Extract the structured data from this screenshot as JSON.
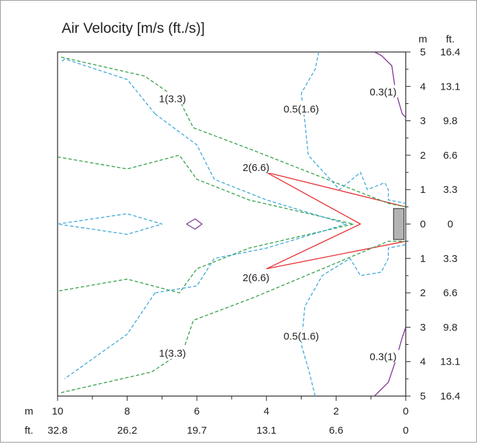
{
  "chart_data": {
    "type": "contour",
    "title": "Air Velocity [m/s (ft./s)]",
    "x_axis": {
      "unit_m": "m",
      "unit_ft": "ft.",
      "lim": [
        10,
        0
      ],
      "ticks_m": [
        "10",
        "8",
        "6",
        "4",
        "2",
        "0"
      ],
      "ticks_ft": [
        "32.8",
        "26.2",
        "19.7",
        "13.1",
        "6.6",
        "0"
      ]
    },
    "y_axis": {
      "unit_m": "m",
      "unit_ft": "ft.",
      "lim": [
        -5,
        5
      ],
      "ticks": [
        {
          "v": 5,
          "m": "5",
          "ft": "16.4"
        },
        {
          "v": 4,
          "m": "4",
          "ft": "13.1"
        },
        {
          "v": 3,
          "m": "3",
          "ft": "9.8"
        },
        {
          "v": 2,
          "m": "2",
          "ft": "6.6"
        },
        {
          "v": 1,
          "m": "1",
          "ft": "3.3"
        },
        {
          "v": 0,
          "m": "0",
          "ft": "0"
        },
        {
          "v": -1,
          "m": "1",
          "ft": "3.3"
        },
        {
          "v": -2,
          "m": "2",
          "ft": "6.6"
        },
        {
          "v": -3,
          "m": "3",
          "ft": "9.8"
        },
        {
          "v": -4,
          "m": "4",
          "ft": "13.1"
        },
        {
          "v": -5,
          "m": "5",
          "ft": "16.4"
        }
      ]
    },
    "grid": false,
    "outlet": {
      "x": [
        0.35,
        0.05
      ],
      "y": [
        -0.45,
        0.45
      ],
      "color": "#b3b3b3"
    },
    "series": [
      {
        "level": "2(6.6)",
        "color": "#e8282b",
        "style": "solid",
        "lines": [
          [
            [
              4.0,
              1.5
            ],
            [
              1.3,
              0.0
            ],
            [
              4.0,
              -1.3
            ]
          ],
          [
            [
              4.0,
              1.5
            ],
            [
              0.0,
              0.5
            ]
          ],
          [
            [
              4.0,
              -1.3
            ],
            [
              0.0,
              -0.5
            ]
          ]
        ],
        "labels": [
          {
            "text": "2(6.6)",
            "x": 4.3,
            "y": 1.6
          },
          {
            "text": "2(6.6)",
            "x": 4.3,
            "y": -1.6
          }
        ]
      },
      {
        "level": "1(3.3)",
        "color": "#2e9e45",
        "style": "dashed",
        "lines": [
          [
            [
              9.9,
              4.85
            ],
            [
              7.5,
              4.3
            ],
            [
              6.5,
              3.6
            ],
            [
              6.1,
              2.8
            ],
            [
              4.4,
              2.15
            ],
            [
              0.5,
              0.6
            ],
            [
              0.0,
              0.5
            ]
          ],
          [
            [
              9.9,
              -4.9
            ],
            [
              7.3,
              -4.3
            ],
            [
              6.4,
              -3.7
            ],
            [
              6.1,
              -2.8
            ],
            [
              4.4,
              -2.15
            ],
            [
              0.5,
              -0.5
            ],
            [
              0.0,
              -0.5
            ]
          ],
          [
            [
              10.0,
              1.95
            ],
            [
              8.0,
              1.6
            ],
            [
              6.5,
              2.0
            ],
            [
              6.0,
              1.3
            ],
            [
              4.5,
              0.7
            ],
            [
              1.5,
              0.0
            ],
            [
              4.5,
              -0.7
            ],
            [
              6.0,
              -1.3
            ],
            [
              6.5,
              -2.0
            ],
            [
              8.0,
              -1.6
            ],
            [
              10.0,
              -1.95
            ]
          ]
        ],
        "labels": [
          {
            "text": "1(3.3)",
            "x": 6.7,
            "y": 3.6
          },
          {
            "text": "1(3.3)",
            "x": 6.7,
            "y": -3.8
          }
        ]
      },
      {
        "level": "0.5(1.6)",
        "color": "#3aa6d8",
        "style": "dashed",
        "lines": [
          [
            [
              2.5,
              5.0
            ],
            [
              2.6,
              4.5
            ],
            [
              3.0,
              3.8
            ],
            [
              2.9,
              3.0
            ],
            [
              2.8,
              2.0
            ],
            [
              1.9,
              1.0
            ],
            [
              1.3,
              1.5
            ],
            [
              1.1,
              1.0
            ],
            [
              0.6,
              1.2
            ],
            [
              0.5,
              1.0
            ],
            [
              0.5,
              0.7
            ],
            [
              0.0,
              0.6
            ]
          ],
          [
            [
              2.6,
              -5.0
            ],
            [
              2.8,
              -4.2
            ],
            [
              3.0,
              -3.5
            ],
            [
              2.9,
              -2.4
            ],
            [
              2.4,
              -1.5
            ],
            [
              1.6,
              -1.0
            ],
            [
              1.3,
              -1.5
            ],
            [
              0.7,
              -1.4
            ],
            [
              0.5,
              -1.0
            ],
            [
              0.5,
              -0.7
            ],
            [
              0.0,
              -0.6
            ]
          ],
          [
            [
              7.2,
              3.2
            ],
            [
              6.0,
              2.3
            ],
            [
              5.5,
              1.3
            ],
            [
              4.0,
              0.7
            ],
            [
              1.7,
              0.0
            ],
            [
              4.0,
              -0.7
            ],
            [
              5.5,
              -1.0
            ],
            [
              6.0,
              -1.8
            ],
            [
              7.2,
              -2.0
            ]
          ],
          [
            [
              7.2,
              3.2
            ],
            [
              8.0,
              4.2
            ],
            [
              9.8,
              4.8
            ]
          ],
          [
            [
              7.2,
              -2.0
            ],
            [
              8.0,
              -3.2
            ],
            [
              9.8,
              -4.5
            ]
          ],
          [
            [
              9.8,
              4.8
            ],
            [
              9.9,
              4.7
            ]
          ],
          [
            [
              10.0,
              0.0
            ],
            [
              8.0,
              0.3
            ],
            [
              7.0,
              0.0
            ],
            [
              8.0,
              -0.3
            ],
            [
              10.0,
              0.0
            ]
          ]
        ],
        "labels": [
          {
            "text": "0.5(1.6)",
            "x": 3.0,
            "y": 3.3
          },
          {
            "text": "0.5(1.6)",
            "x": 3.0,
            "y": -3.3
          }
        ]
      },
      {
        "level": "0.3(1)",
        "color": "#7b2f8e",
        "style": "solid",
        "lines": [
          [
            [
              0.9,
              5.0
            ],
            [
              0.7,
              4.9
            ],
            [
              0.4,
              4.6
            ],
            [
              0.3,
              3.9
            ],
            [
              0.1,
              3.2
            ],
            [
              0.0,
              3.1
            ]
          ],
          [
            [
              0.9,
              -5.0
            ],
            [
              0.5,
              -4.6
            ],
            [
              0.3,
              -4.0
            ],
            [
              0.1,
              -3.3
            ],
            [
              0.0,
              -3.0
            ]
          ],
          [
            [
              6.3,
              0.0
            ],
            [
              6.05,
              0.15
            ],
            [
              5.85,
              0.0
            ],
            [
              6.05,
              -0.15
            ],
            [
              6.3,
              0.0
            ]
          ]
        ],
        "labels": [
          {
            "text": "0.3(1)",
            "x": 0.65,
            "y": 3.8
          },
          {
            "text": "0.3(1)",
            "x": 0.65,
            "y": -3.9
          }
        ]
      }
    ]
  }
}
